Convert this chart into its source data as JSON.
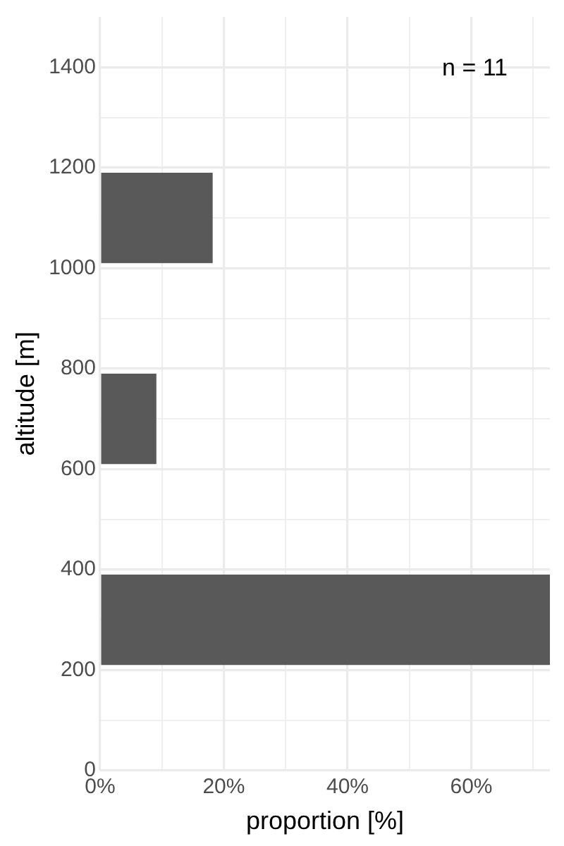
{
  "chart_data": {
    "type": "bar",
    "orientation": "horizontal",
    "xlabel": "proportion [%]",
    "ylabel": "altitude [m]",
    "x": [
      300,
      700,
      1100
    ],
    "values": [
      72.7,
      9.1,
      18.2
    ],
    "color": "#595959",
    "xlim": [
      0,
      72.7
    ],
    "xticks": [
      {
        "value": 0,
        "label": "0%"
      },
      {
        "value": 10,
        "label": null
      },
      {
        "value": 20,
        "label": "20%"
      },
      {
        "value": 30,
        "label": null
      },
      {
        "value": 40,
        "label": "40%"
      },
      {
        "value": 50,
        "label": null
      },
      {
        "value": 60,
        "label": "60%"
      },
      {
        "value": 70,
        "label": null
      }
    ],
    "ylim": [
      0,
      1500
    ],
    "yticks": [
      0,
      {
        "value": 100,
        "label": null
      },
      200,
      {
        "value": 300,
        "label": null
      },
      400,
      {
        "value": 500,
        "label": null
      },
      600,
      {
        "value": 700,
        "label": null
      },
      800,
      {
        "value": 900,
        "label": null
      },
      1000,
      {
        "value": 1100,
        "label": null
      },
      1200,
      {
        "value": 1300,
        "label": null
      },
      1400
    ],
    "grid": true,
    "legend": false,
    "annotations": [
      "n = 11"
    ]
  }
}
